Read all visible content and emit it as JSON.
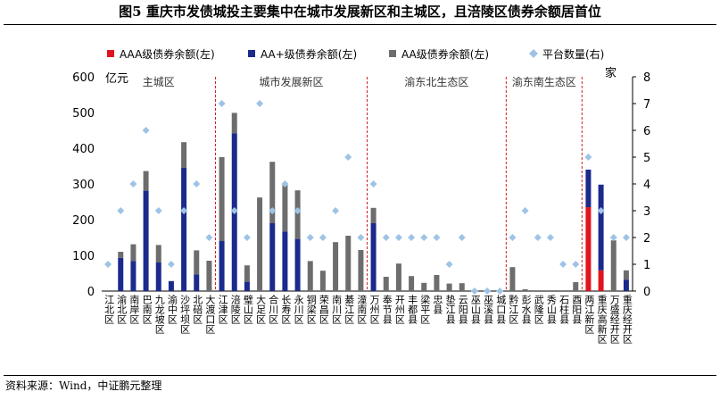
{
  "title": "图5  重庆市发债城投主要集中在城市发展新区和主城区，且涪陵区债券余额居首位",
  "source": "资料来源：Wind，中证鹏元整理",
  "chart_data": {
    "type": "bar",
    "stacked": true,
    "categories": [
      "江北区",
      "渝北区",
      "南岸区",
      "巴南区",
      "九龙坡区",
      "渝中区",
      "沙坪坝区",
      "北碚区",
      "大渡口区",
      "江津区",
      "涪陵区",
      "璧山区",
      "大足区",
      "合川区",
      "长寿区",
      "永川区",
      "铜梁区",
      "荣昌区",
      "南川区",
      "綦江区",
      "潼南区",
      "万州区",
      "奉节县",
      "开州区",
      "丰都县",
      "梁平区",
      "忠县",
      "垫江县",
      "云阳县",
      "巫山县",
      "巫溪县",
      "城口县",
      "黔江区",
      "彭水县",
      "武隆区",
      "秀山县",
      "石柱县",
      "酉阳县",
      "两江新区",
      "重庆高新区",
      "万盛经开区",
      "重庆经开区"
    ],
    "series": [
      {
        "name": "AAA级债券余额(左)",
        "color": "#e0141e",
        "axis": "left",
        "values": [
          0,
          0,
          0,
          0,
          0,
          0,
          0,
          0,
          0,
          0,
          0,
          0,
          0,
          0,
          0,
          0,
          0,
          0,
          0,
          0,
          0,
          0,
          0,
          0,
          0,
          0,
          0,
          0,
          0,
          0,
          0,
          0,
          0,
          0,
          0,
          0,
          0,
          0,
          235,
          58,
          0,
          0
        ]
      },
      {
        "name": "AA+级债券余额(左)",
        "color": "#1c2a8c",
        "axis": "left",
        "values": [
          0,
          93,
          84,
          281,
          80,
          28,
          345,
          47,
          0,
          140,
          442,
          26,
          0,
          190,
          167,
          146,
          0,
          0,
          0,
          0,
          0,
          190,
          0,
          0,
          0,
          0,
          0,
          0,
          0,
          0,
          0,
          0,
          0,
          0,
          0,
          0,
          0,
          0,
          105,
          240,
          0,
          32
        ]
      },
      {
        "name": "AA级债券余额(左)",
        "color": "#6d6d6d",
        "axis": "left",
        "values": [
          0,
          17,
          47,
          55,
          49,
          0,
          72,
          67,
          85,
          235,
          57,
          46,
          262,
          172,
          130,
          136,
          84,
          57,
          137,
          155,
          115,
          43,
          40,
          77,
          42,
          23,
          45,
          21,
          22,
          3,
          3,
          2,
          67,
          5,
          0,
          0,
          0,
          25,
          0,
          0,
          142,
          26
        ]
      },
      {
        "name": "平台数量(右)",
        "color": "#9ec3e6",
        "axis": "right",
        "marker": "diamond",
        "values": [
          1,
          3,
          4,
          6,
          3,
          1,
          3,
          4,
          2,
          7,
          3,
          2,
          7,
          3,
          4,
          3,
          2,
          2,
          3,
          5,
          2,
          4,
          2,
          2,
          2,
          2,
          2,
          1,
          2,
          0,
          0,
          0,
          2,
          3,
          2,
          2,
          1,
          1,
          5,
          3,
          2,
          2
        ]
      }
    ],
    "y_left": {
      "label": "亿元",
      "min": 0,
      "max": 600,
      "ticks": [
        0,
        100,
        200,
        300,
        400,
        500,
        600
      ]
    },
    "y_right": {
      "label": "家",
      "min": 0,
      "max": 8,
      "ticks": [
        0,
        1,
        2,
        3,
        4,
        5,
        6,
        7,
        8
      ]
    },
    "regions": [
      {
        "name": "主城区",
        "start": 0,
        "end": 8
      },
      {
        "name": "城市发展新区",
        "start": 9,
        "end": 20
      },
      {
        "name": "渝东北生态区",
        "start": 21,
        "end": 31
      },
      {
        "name": "渝东南生态区",
        "start": 32,
        "end": 37
      }
    ],
    "legend_position": "top"
  }
}
